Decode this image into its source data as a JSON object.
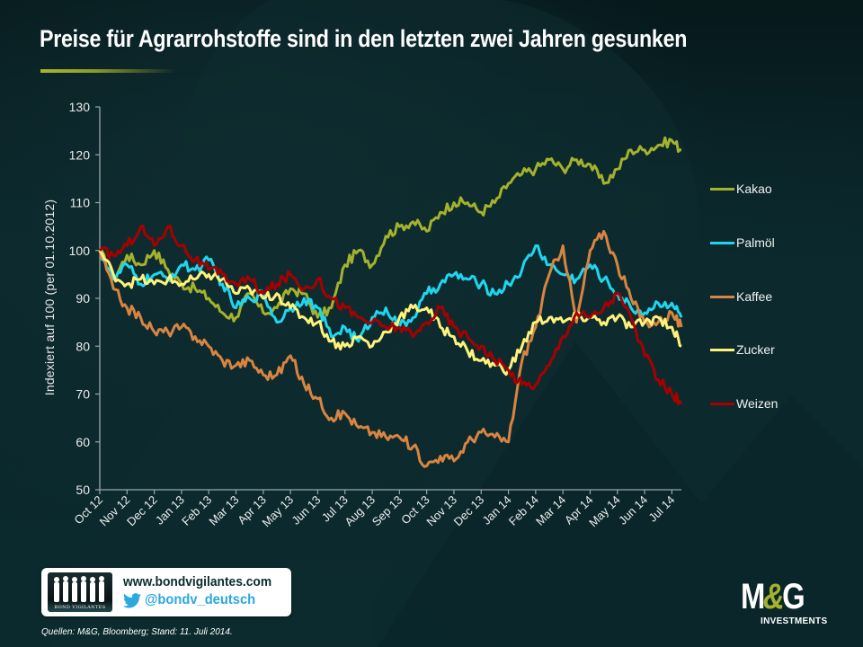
{
  "title": "Preise für Agrarrohstoffe sind in den letzten zwei Jahren gesunken",
  "colors": {
    "accent": "#a9b52e",
    "axis": "#9aa7aa",
    "background": "#0a2428"
  },
  "footer": {
    "logo_text": "BOND VIGILANTES",
    "url": "www.bondvigilantes.com",
    "twitter_icon": "twitter-bird-icon",
    "twitter_handle": "@bondv_deutsch",
    "source": "Quellen: M&G, Bloomberg; Stand: 11. Juli 2014.",
    "brand_letters_1": "M",
    "brand_amp": "&",
    "brand_letters_2": "G",
    "brand_sub": "INVESTMENTS"
  },
  "chart_data": {
    "type": "line",
    "title": "Preise für Agrarrohstoffe sind in den letzten zwei Jahren gesunken",
    "xlabel": "",
    "ylabel": "Indexiert  auf 100 (per 01.10.2012)",
    "ylim": [
      50,
      130
    ],
    "yticks": [
      50,
      60,
      70,
      80,
      90,
      100,
      110,
      120,
      130
    ],
    "xlim": [
      0,
      21.35
    ],
    "x_unit": "months since Oct 12",
    "categories": [
      "Oct 12",
      "Nov 12",
      "Dec 12",
      "Jan 13",
      "Feb 13",
      "Mar 13",
      "Apr 13",
      "May 13",
      "Jun 13",
      "Jul 13",
      "Aug 13",
      "Sep 13",
      "Oct 13",
      "Nov 13",
      "Dec 13",
      "Jan 14",
      "Feb 14",
      "Mar 14",
      "Apr 14",
      "May 14",
      "Jun 14",
      "Jul 14"
    ],
    "grid": false,
    "legend": "right",
    "x": [
      0,
      0.5,
      1,
      1.5,
      2,
      2.5,
      3,
      3.5,
      4,
      4.5,
      5,
      5.5,
      6,
      6.5,
      7,
      7.5,
      8,
      8.5,
      9,
      9.5,
      10,
      10.5,
      11,
      11.5,
      12,
      12.5,
      13,
      13.5,
      14,
      14.5,
      15,
      15.5,
      16,
      16.5,
      17,
      17.5,
      18,
      18.5,
      19,
      19.5,
      20,
      20.5,
      21,
      21.35
    ],
    "series": [
      {
        "name": "Kakao",
        "color": "#a4b22c",
        "values": [
          100,
          94,
          99,
          97,
          100,
          96,
          93,
          92,
          90,
          87,
          86,
          91,
          87,
          88,
          92,
          91,
          86,
          88,
          97,
          100,
          97,
          103,
          105,
          106,
          104,
          108,
          110,
          110,
          108,
          110,
          114,
          116,
          117,
          119,
          117,
          119,
          118,
          114,
          117,
          121,
          121,
          122,
          123,
          121
        ]
      },
      {
        "name": "Palmöl",
        "color": "#1fd6f0",
        "values": [
          100,
          94,
          97,
          93,
          95,
          94,
          97,
          96,
          98,
          93,
          88,
          90,
          91,
          85,
          88,
          90,
          88,
          82,
          84,
          81,
          86,
          88,
          84,
          86,
          91,
          93,
          95,
          94,
          93,
          91,
          93,
          96,
          101,
          97,
          95,
          94,
          97,
          94,
          91,
          88,
          87,
          89,
          89,
          86
        ]
      },
      {
        "name": "Kaffee",
        "color": "#d98440",
        "values": [
          100,
          92,
          88,
          86,
          83,
          83,
          84,
          82,
          80,
          77,
          76,
          77,
          74,
          74,
          78,
          72,
          69,
          65,
          66,
          63,
          62,
          61,
          61,
          59,
          55,
          57,
          56,
          60,
          62,
          61,
          60,
          77,
          84,
          95,
          101,
          85,
          100,
          104,
          97,
          90,
          85,
          85,
          87,
          84
        ]
      },
      {
        "name": "Zucker",
        "color": "#fff27a",
        "values": [
          100,
          95,
          93,
          94,
          93,
          94,
          93,
          94,
          95,
          94,
          91,
          92,
          90,
          91,
          88,
          86,
          85,
          81,
          80,
          82,
          80,
          83,
          86,
          88,
          88,
          84,
          82,
          79,
          77,
          76,
          75,
          80,
          85,
          86,
          85,
          86,
          86,
          85,
          86,
          84,
          85,
          86,
          84,
          80
        ]
      },
      {
        "name": "Weizen",
        "color": "#a80000",
        "values": [
          100,
          99,
          101,
          105,
          101,
          105,
          101,
          98,
          96,
          95,
          93,
          94,
          91,
          93,
          95,
          92,
          94,
          90,
          88,
          86,
          85,
          84,
          84,
          82,
          85,
          88,
          84,
          82,
          80,
          77,
          75,
          72,
          72,
          76,
          82,
          87,
          86,
          88,
          91,
          86,
          78,
          73,
          70,
          68
        ]
      }
    ]
  }
}
